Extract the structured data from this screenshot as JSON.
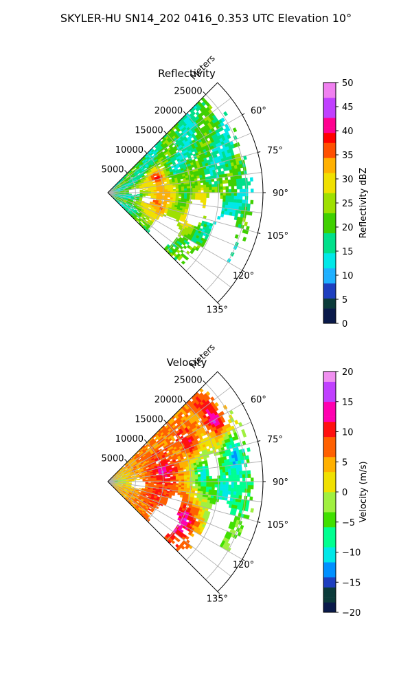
{
  "title": "SKYLER-HU  SN14_202  0416_0.353 UTC Elevation 10°",
  "chart_data": [
    {
      "type": "heatmap",
      "projection": "polar-sector",
      "title": "Reflectivity",
      "radial_label": "Meters",
      "radial_ticks": [
        "5000",
        "10000",
        "15000",
        "20000",
        "25000"
      ],
      "azimuth_ticks": [
        "60°",
        "75°",
        "90°",
        "105°",
        "120°",
        "135°"
      ],
      "azimuth_range_deg": [
        45,
        135
      ],
      "range_max_m": 28000,
      "colorbar": {
        "label": "Reflectivity dBZ",
        "ticks": [
          "0",
          "5",
          "10",
          "15",
          "20",
          "25",
          "30",
          "35",
          "40",
          "45",
          "50"
        ],
        "range": [
          0,
          50
        ]
      },
      "cells": [
        {
          "az": 75,
          "range_m": 9000,
          "value": 38
        },
        {
          "az": 85,
          "range_m": 9000,
          "value": 33
        },
        {
          "az": 83,
          "range_m": 6500,
          "value": 28
        },
        {
          "az": 93,
          "range_m": 16500,
          "value": 30
        },
        {
          "az": 103,
          "range_m": 8500,
          "value": 33
        },
        {
          "az": 108,
          "range_m": 9000,
          "value": 37
        },
        {
          "az": 108,
          "range_m": 15000,
          "value": 30
        },
        {
          "az": 95,
          "range_m": 10500,
          "value": 32
        },
        {
          "az": 112,
          "range_m": 8000,
          "value": 30
        },
        {
          "az": 115,
          "range_m": 14000,
          "value": 27
        }
      ]
    },
    {
      "type": "heatmap",
      "projection": "polar-sector",
      "title": "Velocity",
      "radial_label": "Meters",
      "radial_ticks": [
        "5000",
        "10000",
        "15000",
        "20000",
        "25000"
      ],
      "azimuth_ticks": [
        "60°",
        "75°",
        "90°",
        "105°",
        "120°",
        "135°"
      ],
      "azimuth_range_deg": [
        45,
        135
      ],
      "range_max_m": 28000,
      "colorbar": {
        "label": "Velocity (m/s)",
        "ticks": [
          "−20",
          "−15",
          "−10",
          "−5",
          "0",
          "5",
          "10",
          "15",
          "20"
        ],
        "range": [
          -20,
          20
        ]
      },
      "cells": [
        {
          "az": 90,
          "range_m": 1500,
          "value": -3
        },
        {
          "az": 95,
          "range_m": 4000,
          "value": 2
        },
        {
          "az": 98,
          "range_m": 7500,
          "value": 8
        },
        {
          "az": 105,
          "range_m": 9000,
          "value": 10
        },
        {
          "az": 80,
          "range_m": 10000,
          "value": 14
        },
        {
          "az": 65,
          "range_m": 16000,
          "value": 12
        },
        {
          "az": 60,
          "range_m": 22000,
          "value": 16
        },
        {
          "az": 85,
          "range_m": 17000,
          "value": -12
        },
        {
          "az": 95,
          "range_m": 21000,
          "value": -11
        },
        {
          "az": 78,
          "range_m": 23000,
          "value": -15
        },
        {
          "az": 118,
          "range_m": 15000,
          "value": 16
        }
      ]
    }
  ]
}
